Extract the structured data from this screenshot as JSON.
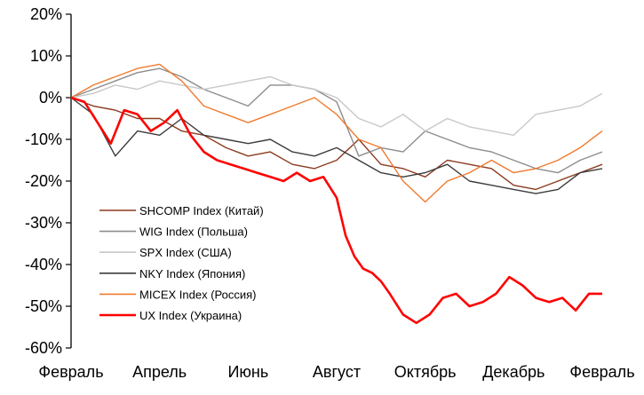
{
  "chart_data": {
    "type": "line",
    "title": "",
    "xlabel": "",
    "ylabel": "",
    "x_ticks": [
      "Февраль",
      "Апрель",
      "Июнь",
      "Август",
      "Октябрь",
      "Декабрь",
      "Февраль"
    ],
    "y_ticks": [
      "20%",
      "10%",
      "0%",
      "-10%",
      "-20%",
      "-30%",
      "-40%",
      "-50%",
      "-60%"
    ],
    "ylim": [
      -60,
      20
    ],
    "xlim": [
      0,
      12
    ],
    "grid": false,
    "legend_position": "lower-left inside plot",
    "series": [
      {
        "name": "SHCOMP Index (Китай)",
        "color": "#8B3A1E",
        "x": [
          0,
          0.5,
          1,
          1.5,
          2,
          2.5,
          3,
          3.5,
          4,
          4.5,
          5,
          5.5,
          6,
          6.5,
          7,
          7.5,
          8,
          8.5,
          9,
          9.5,
          10,
          10.5,
          11,
          11.5,
          12
        ],
        "y": [
          0,
          -2,
          -3,
          -5,
          -5,
          -8,
          -9,
          -12,
          -14,
          -13,
          -16,
          -17,
          -15,
          -10,
          -16,
          -17,
          -19,
          -15,
          -16,
          -17,
          -21,
          -22,
          -20,
          -18,
          -16
        ]
      },
      {
        "name": "WIG Index (Польша)",
        "color": "#8C8C8C",
        "x": [
          0,
          0.5,
          1,
          1.5,
          2,
          2.5,
          3,
          3.5,
          4,
          4.5,
          5,
          5.5,
          6,
          6.5,
          7,
          7.5,
          8,
          8.5,
          9,
          9.5,
          10,
          10.5,
          11,
          11.5,
          12
        ],
        "y": [
          0,
          2,
          4,
          6,
          7,
          5,
          2,
          0,
          -2,
          3,
          3,
          2,
          -1,
          -14,
          -12,
          -13,
          -8,
          -10,
          -12,
          -13,
          -15,
          -17,
          -18,
          -15,
          -13
        ]
      },
      {
        "name": "SPX Index (США)",
        "color": "#C8C8C8",
        "x": [
          0,
          0.5,
          1,
          1.5,
          2,
          2.5,
          3,
          3.5,
          4,
          4.5,
          5,
          5.5,
          6,
          6.5,
          7,
          7.5,
          8,
          8.5,
          9,
          9.5,
          10,
          10.5,
          11,
          11.5,
          12
        ],
        "y": [
          0,
          1,
          3,
          2,
          4,
          3,
          2,
          3,
          4,
          5,
          3,
          2,
          0,
          -5,
          -7,
          -4,
          -8,
          -5,
          -7,
          -8,
          -9,
          -4,
          -3,
          -2,
          1
        ]
      },
      {
        "name": "NKY Index (Япония)",
        "color": "#3C3C3C",
        "x": [
          0,
          0.5,
          1,
          1.5,
          2,
          2.5,
          3,
          3.5,
          4,
          4.5,
          5,
          5.5,
          6,
          6.5,
          7,
          7.5,
          8,
          8.5,
          9,
          9.5,
          10,
          10.5,
          11,
          11.5,
          12
        ],
        "y": [
          0,
          -4,
          -14,
          -8,
          -9,
          -5,
          -9,
          -10,
          -11,
          -10,
          -13,
          -14,
          -12,
          -15,
          -18,
          -19,
          -18,
          -16,
          -20,
          -21,
          -22,
          -23,
          -22,
          -18,
          -17
        ]
      },
      {
        "name": "MICEX Index (Россия)",
        "color": "#F07A2E",
        "x": [
          0,
          0.5,
          1,
          1.5,
          2,
          2.5,
          3,
          3.5,
          4,
          4.5,
          5,
          5.5,
          6,
          6.5,
          7,
          7.5,
          8,
          8.5,
          9,
          9.5,
          10,
          10.5,
          11,
          11.5,
          12
        ],
        "y": [
          0,
          3,
          5,
          7,
          8,
          4,
          -2,
          -4,
          -6,
          -4,
          -2,
          0,
          -4,
          -10,
          -12,
          -20,
          -25,
          -20,
          -18,
          -15,
          -18,
          -17,
          -15,
          -12,
          -8
        ]
      },
      {
        "name": "UX Index (Украина)",
        "color": "#FF0000",
        "x": [
          0,
          0.3,
          0.6,
          0.9,
          1.2,
          1.5,
          1.8,
          2.1,
          2.4,
          2.7,
          3,
          3.3,
          3.6,
          3.9,
          4.2,
          4.5,
          4.8,
          5.1,
          5.4,
          5.7,
          6,
          6.2,
          6.4,
          6.6,
          6.8,
          7.0,
          7.2,
          7.5,
          7.8,
          8.1,
          8.4,
          8.7,
          9.0,
          9.3,
          9.6,
          9.9,
          10.2,
          10.5,
          10.8,
          11.1,
          11.4,
          11.7,
          12
        ],
        "y": [
          0,
          -1,
          -6,
          -11,
          -3,
          -4,
          -8,
          -6,
          -3,
          -9,
          -13,
          -15,
          -16,
          -17,
          -18,
          -19,
          -20,
          -18,
          -20,
          -19,
          -24,
          -33,
          -38,
          -41,
          -42,
          -44,
          -47,
          -52,
          -54,
          -52,
          -48,
          -47,
          -50,
          -49,
          -47,
          -43,
          -45,
          -48,
          -49,
          -48,
          -51,
          -47,
          -47
        ]
      }
    ]
  }
}
